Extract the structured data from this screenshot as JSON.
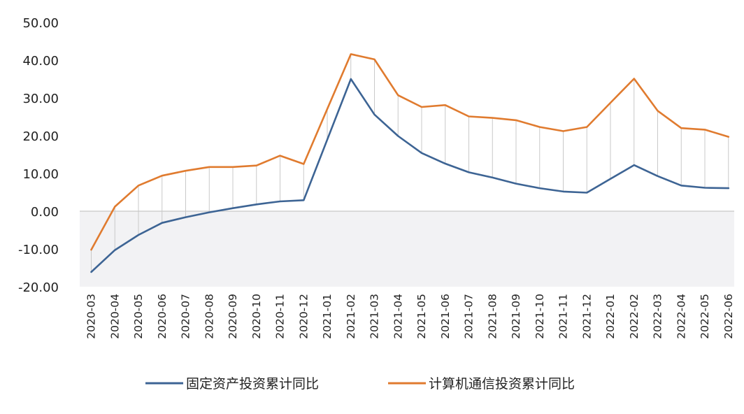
{
  "chart_data": {
    "type": "line",
    "title": "",
    "xlabel": "",
    "ylabel": "",
    "ylim": [
      -20,
      50
    ],
    "yticks": [
      "50.00",
      "40.00",
      "30.00",
      "20.00",
      "10.00",
      "0.00",
      "-10.00",
      "-20.00"
    ],
    "ytick_values": [
      50,
      40,
      30,
      20,
      10,
      0,
      -10,
      -20
    ],
    "grid": "vertical lines between the two series; light gray band below zero",
    "legend_position": "bottom",
    "categories": [
      "2020-03",
      "2020-04",
      "2020-05",
      "2020-06",
      "2020-07",
      "2020-08",
      "2020-09",
      "2020-10",
      "2020-11",
      "2020-12",
      "2021-01",
      "2021-02",
      "2021-03",
      "2021-04",
      "2021-05",
      "2021-06",
      "2021-07",
      "2021-08",
      "2021-09",
      "2021-10",
      "2021-11",
      "2021-12",
      "2022-01",
      "2022-02",
      "2022-03",
      "2022-04",
      "2022-05",
      "2022-06"
    ],
    "series": [
      {
        "name": "固定资产投资累计同比",
        "color": "#3d6494",
        "values": [
          -16.1,
          -10.3,
          -6.3,
          -3.1,
          -1.6,
          -0.3,
          0.8,
          1.8,
          2.6,
          2.9,
          null,
          35.0,
          25.6,
          19.9,
          15.4,
          12.6,
          10.3,
          8.9,
          7.3,
          6.1,
          5.2,
          4.9,
          null,
          12.2,
          9.3,
          6.8,
          6.2,
          6.1
        ]
      },
      {
        "name": "计算机通信投资累计同比",
        "color": "#e07b2f",
        "values": [
          -10.2,
          1.2,
          6.8,
          9.4,
          10.7,
          11.7,
          11.7,
          12.1,
          14.7,
          12.5,
          null,
          41.6,
          40.2,
          30.7,
          27.6,
          28.1,
          25.1,
          24.7,
          24.1,
          22.3,
          21.2,
          22.3,
          null,
          35.1,
          26.6,
          22.0,
          21.6,
          19.7
        ]
      }
    ]
  }
}
